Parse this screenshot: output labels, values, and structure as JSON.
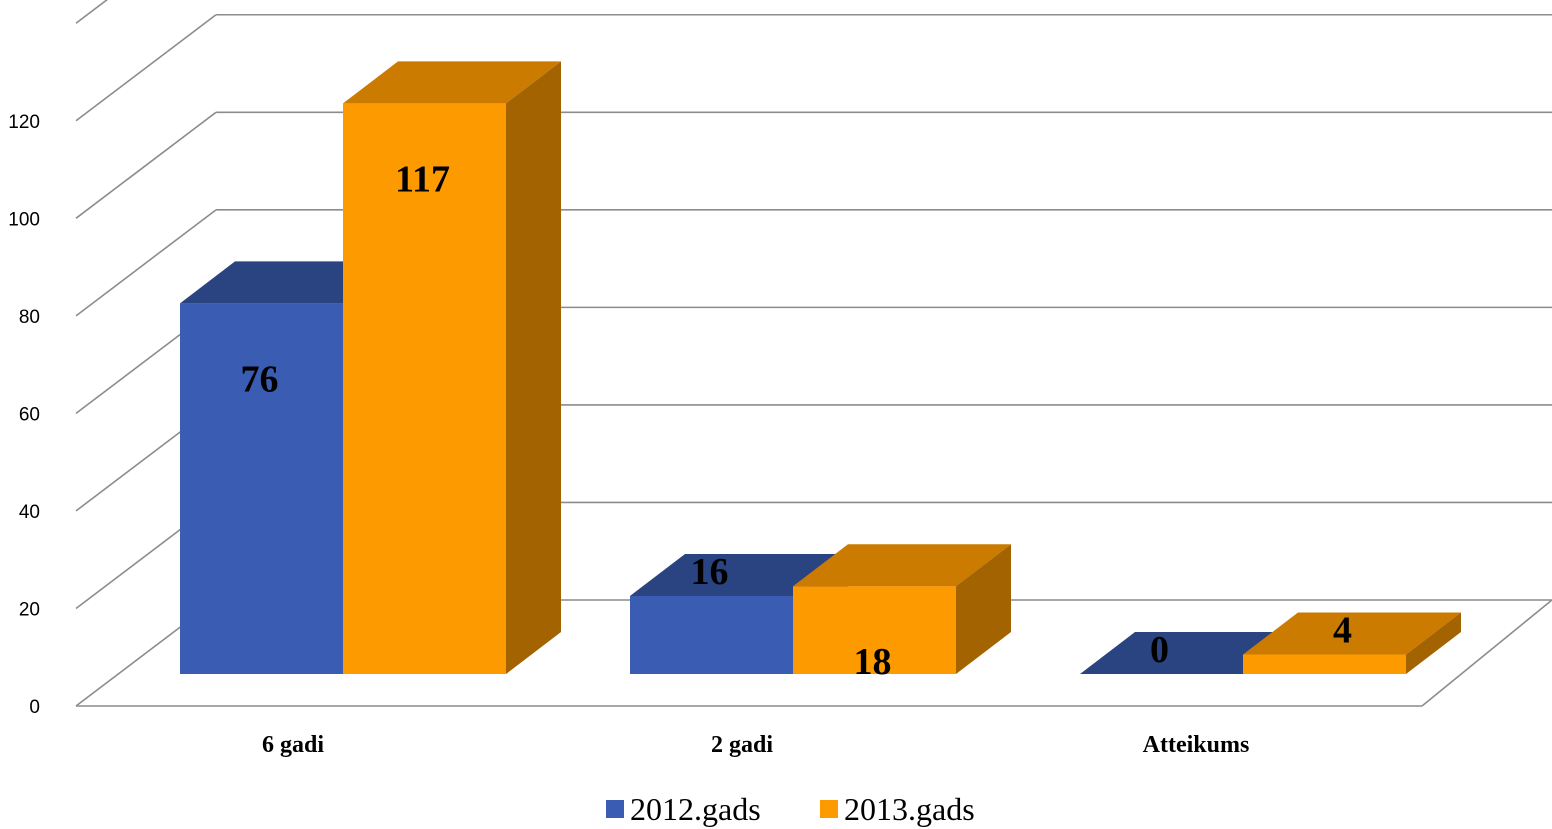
{
  "chart_data": {
    "type": "bar",
    "title": "",
    "xlabel": "",
    "ylabel": "",
    "categories": [
      "6 gadi",
      "2 gadi",
      "Atteikums"
    ],
    "series": [
      {
        "name": "2012.gads",
        "values": [
          76,
          16,
          0
        ],
        "color": "#3a5db3"
      },
      {
        "name": "2013.gads",
        "values": [
          117,
          18,
          4
        ],
        "color": "#fd9a00"
      }
    ],
    "ylim": [
      0,
      140
    ],
    "yticks": [
      0,
      20,
      40,
      60,
      80,
      100,
      120
    ],
    "grid": true,
    "legend": "bottom"
  }
}
